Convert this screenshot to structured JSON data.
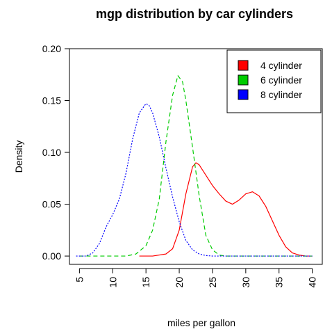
{
  "chart_data": {
    "type": "line",
    "title": "mgp distribution by car cylinders",
    "xlabel": "miles per gallon",
    "ylabel": "Density",
    "xlim": [
      4,
      40
    ],
    "ylim": [
      0,
      0.2
    ],
    "x_ticks": [
      5,
      10,
      15,
      20,
      25,
      30,
      35,
      40
    ],
    "y_ticks": [
      0.0,
      0.05,
      0.1,
      0.15,
      0.2
    ],
    "x_tick_labels": [
      "5",
      "10",
      "15",
      "20",
      "25",
      "30",
      "35",
      "40"
    ],
    "y_tick_labels": [
      "0.00",
      "0.05",
      "0.10",
      "0.15",
      "0.20"
    ],
    "grid": false,
    "legend_position": "top-right",
    "series": [
      {
        "name": "4 cylinder",
        "color": "#ff0000",
        "line_style": "solid",
        "x": [
          14,
          16,
          18,
          19,
          20,
          21,
          22,
          22.5,
          23,
          24,
          25,
          26,
          27,
          28,
          29,
          30,
          31,
          32,
          33,
          34,
          35,
          36,
          37,
          38,
          39,
          40
        ],
        "y": [
          0.0,
          0.0,
          0.002,
          0.007,
          0.025,
          0.06,
          0.086,
          0.09,
          0.088,
          0.078,
          0.068,
          0.06,
          0.053,
          0.05,
          0.054,
          0.06,
          0.062,
          0.058,
          0.048,
          0.034,
          0.02,
          0.009,
          0.003,
          0.001,
          0.0,
          0.0
        ]
      },
      {
        "name": "6 cylinder",
        "color": "#00cc00",
        "line_style": "dashed",
        "x": [
          5,
          9,
          12,
          13.5,
          15,
          16,
          17,
          18,
          19,
          19.8,
          20.5,
          21,
          22,
          23,
          24,
          25,
          26,
          27,
          29,
          40
        ],
        "y": [
          0.0,
          0.0,
          0.0,
          0.002,
          0.01,
          0.025,
          0.055,
          0.11,
          0.155,
          0.174,
          0.168,
          0.15,
          0.105,
          0.058,
          0.02,
          0.006,
          0.001,
          0.0,
          0.0,
          0.0
        ]
      },
      {
        "name": "8 cylinder",
        "color": "#0000ff",
        "line_style": "dotted",
        "x": [
          4.5,
          6,
          7,
          8,
          9,
          10,
          11,
          12,
          13,
          14,
          15,
          15.5,
          16,
          17,
          18,
          19,
          20,
          21,
          22,
          23,
          24,
          25,
          27,
          40
        ],
        "y": [
          0.0,
          0.0,
          0.003,
          0.012,
          0.028,
          0.04,
          0.055,
          0.08,
          0.113,
          0.138,
          0.147,
          0.145,
          0.138,
          0.115,
          0.085,
          0.057,
          0.033,
          0.015,
          0.006,
          0.002,
          0.0005,
          0.0,
          0.0,
          0.0
        ]
      }
    ]
  }
}
